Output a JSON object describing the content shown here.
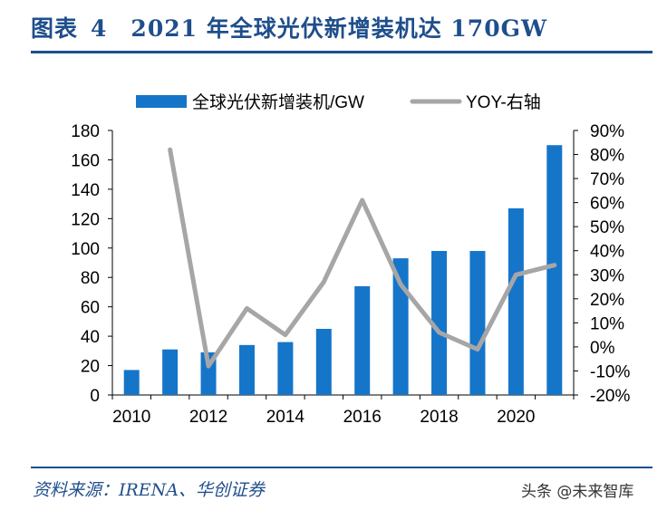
{
  "figure": {
    "label": "图表",
    "number": "4",
    "title": "2021 年全球光伏新增装机达 170GW"
  },
  "source_note": "资料来源：IRENA、华创证券",
  "watermark": "头条 @未来智库",
  "colors": {
    "bar": "#1575c9",
    "line": "#a6a6a6",
    "title": "#1f4e8c"
  },
  "chart_data": {
    "type": "bar",
    "legend": {
      "placement": "top",
      "bar_label": "全球光伏新增装机/GW",
      "line_label": "YOY-右轴"
    },
    "x": [
      2010,
      2011,
      2012,
      2013,
      2014,
      2015,
      2016,
      2017,
      2018,
      2019,
      2020,
      2021
    ],
    "x_tick_labels": [
      "2010",
      "2012",
      "2014",
      "2016",
      "2018",
      "2020"
    ],
    "series": [
      {
        "name": "全球光伏新增装机/GW",
        "type": "bar",
        "axis": "left",
        "values": [
          17,
          31,
          29,
          34,
          36,
          45,
          74,
          93,
          98,
          98,
          127,
          170
        ]
      },
      {
        "name": "YOY-右轴",
        "type": "line",
        "axis": "right",
        "values": [
          null,
          82,
          -8,
          16,
          5,
          27,
          61,
          26,
          6,
          -1,
          30,
          34
        ]
      }
    ],
    "y_left": {
      "range": [
        0,
        180
      ],
      "ticks": [
        "0",
        "20",
        "40",
        "60",
        "80",
        "100",
        "120",
        "140",
        "160",
        "180"
      ]
    },
    "y_right": {
      "range": [
        -20,
        90
      ],
      "unit": "%",
      "ticks": [
        "-20%",
        "-10%",
        "0%",
        "10%",
        "20%",
        "30%",
        "40%",
        "50%",
        "60%",
        "70%",
        "80%",
        "90%"
      ]
    },
    "grid": false
  }
}
